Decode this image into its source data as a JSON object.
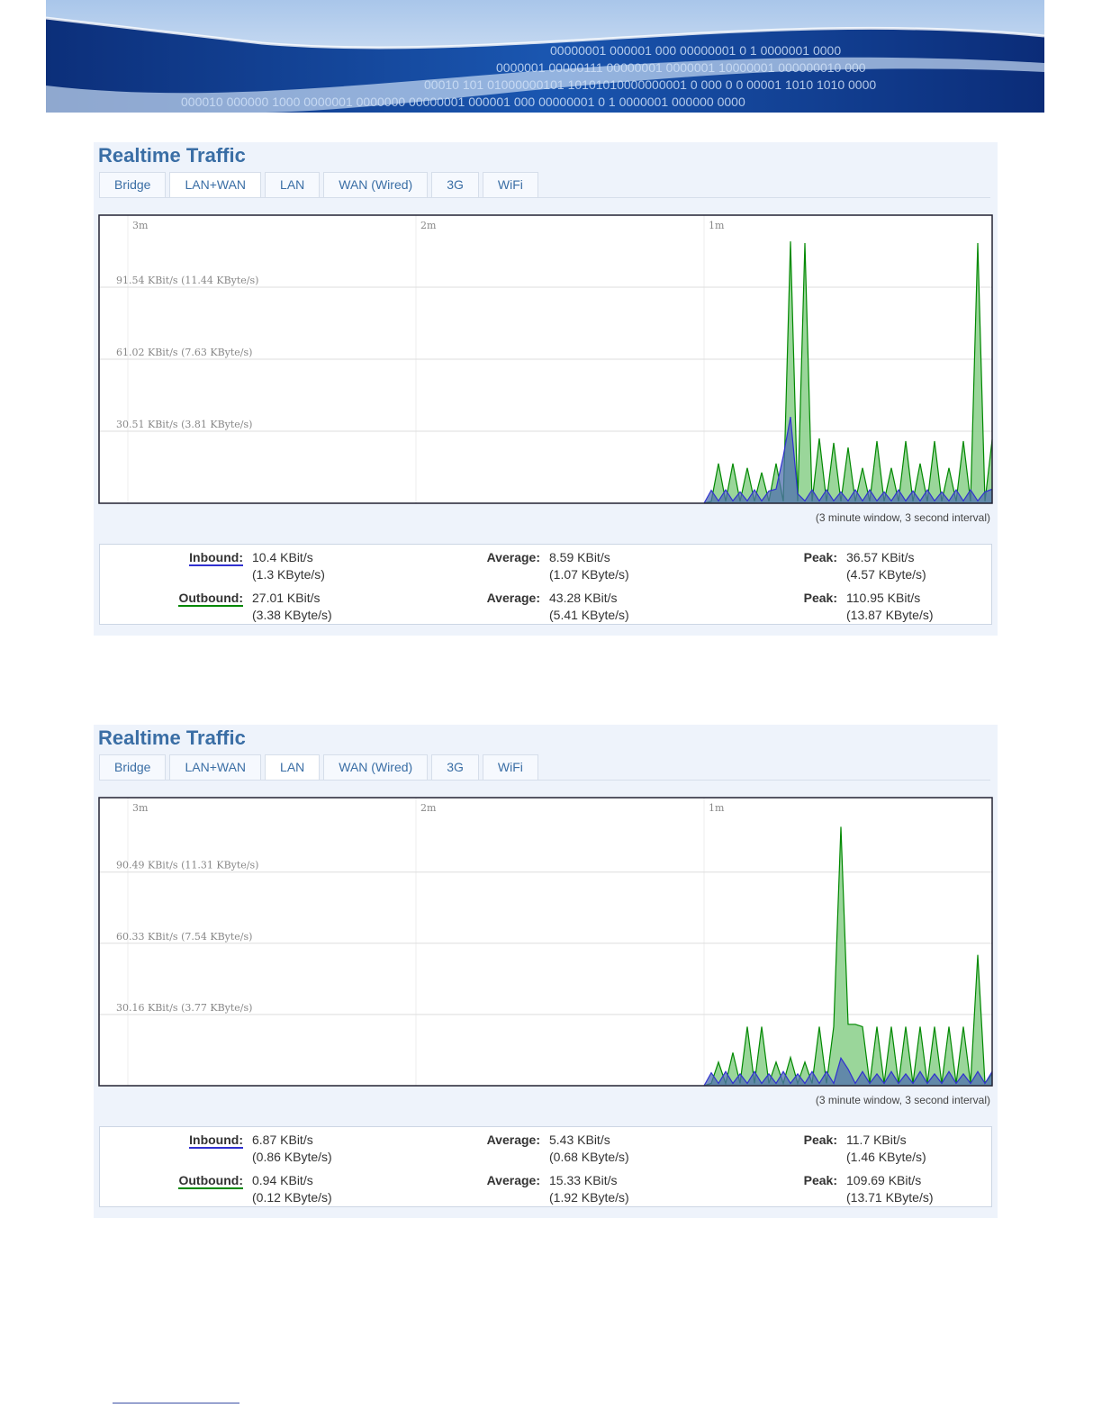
{
  "banner": {
    "lines": [
      "00000001 000001 000 00000001 0 1 0000001 0000",
      "0000001 00000111 00000001 0000001 10000001 000000010 000",
      "00010 101 01000000101 10101010000000001 0 000 0 0 00001 1010 1010 0000",
      "000010 000000 1000 0000001 0000000 00000001 000001 000 00000001 0 1 0000001 000000 0000"
    ]
  },
  "panels": [
    {
      "title": "Realtime Traffic",
      "tabs": [
        "Bridge",
        "LAN+WAN",
        "LAN",
        "WAN (Wired)",
        "3G",
        "WiFi"
      ],
      "active_tab": 1,
      "graph": {
        "xlim": [
          186,
          0
        ],
        "ylim": [
          0,
          122.04
        ],
        "xticks": [
          {
            "value": 180,
            "label": "3m"
          },
          {
            "value": 120,
            "label": "2m"
          },
          {
            "value": 60,
            "label": "1m"
          }
        ],
        "yticks": [
          {
            "value": 30.51,
            "label": "30.51 KBit/s (3.81 KByte/s)"
          },
          {
            "value": 61.02,
            "label": "61.02 KBit/s (7.63 KByte/s)"
          },
          {
            "value": 91.54,
            "label": "91.54 KBit/s (11.44 KByte/s)"
          }
        ],
        "x": [
          60,
          58.5,
          57,
          55.5,
          54,
          52.5,
          51,
          49.5,
          48,
          46.5,
          45,
          43.5,
          42,
          40.5,
          39,
          37.5,
          36,
          34.5,
          33,
          31.5,
          30,
          28.5,
          27,
          25.5,
          24,
          22.5,
          21,
          19.5,
          18,
          16.5,
          15,
          13.5,
          12,
          10.5,
          9,
          7.5,
          6,
          4.5,
          3,
          1.5,
          0
        ],
        "series": [
          {
            "color": "#008800",
            "fill": "#8fd18f",
            "values": [
              0,
              0.8,
              16.8,
              0.8,
              16.8,
              0.8,
              15,
              0.8,
              13,
              0.8,
              16.8,
              0.8,
              110.95,
              0.8,
              110.2,
              0.8,
              27.5,
              0.8,
              25.6,
              0.8,
              23.6,
              0.8,
              15,
              0.8,
              26.3,
              0.8,
              15,
              0.8,
              26.3,
              0.8,
              16.8,
              0.8,
              26.3,
              0.8,
              15,
              0.8,
              26.3,
              0.8,
              110.2,
              0.8,
              27
            ]
          },
          {
            "color": "#3030d0",
            "fill": "#4f6fae",
            "values": [
              0,
              5.5,
              1,
              5.7,
              1,
              4.8,
              1,
              5.7,
              1,
              5.2,
              6,
              20,
              36.57,
              4,
              1,
              5.7,
              1,
              5.7,
              1,
              4.8,
              1,
              5.7,
              1,
              5.7,
              1,
              4.8,
              1,
              5.7,
              1,
              5.2,
              1,
              5.7,
              1,
              4.8,
              1,
              5.7,
              1,
              5.7,
              1,
              4.8,
              6
            ]
          }
        ],
        "note": "(3 minute window, 3 second interval)"
      },
      "stats": [
        {
          "label": "Inbound:",
          "cur": "10.4 KBit/s",
          "cur2": "(1.3 KByte/s)",
          "avg_label": "Average:",
          "avg": "8.59 KBit/s",
          "avg2": "(1.07 KByte/s)",
          "peak_label": "Peak:",
          "peak": "36.57 KBit/s",
          "peak2": "(4.57 KByte/s)"
        },
        {
          "label": "Outbound:",
          "cur": "27.01 KBit/s",
          "cur2": "(3.38 KByte/s)",
          "avg_label": "Average:",
          "avg": "43.28 KBit/s",
          "avg2": "(5.41 KByte/s)",
          "peak_label": "Peak:",
          "peak": "110.95 KBit/s",
          "peak2": "(13.87 KByte/s)"
        }
      ]
    },
    {
      "title": "Realtime Traffic",
      "tabs": [
        "Bridge",
        "LAN+WAN",
        "LAN",
        "WAN (Wired)",
        "3G",
        "WiFi"
      ],
      "active_tab": 2,
      "graph": {
        "xlim": [
          186,
          0
        ],
        "ylim": [
          0,
          122.04
        ],
        "xticks": [
          {
            "value": 180,
            "label": "3m"
          },
          {
            "value": 120,
            "label": "2m"
          },
          {
            "value": 60,
            "label": "1m"
          }
        ],
        "yticks": [
          {
            "value": 30.16,
            "label": "30.16 KBit/s (3.77 KByte/s)"
          },
          {
            "value": 60.33,
            "label": "60.33 KBit/s (7.54 KByte/s)"
          },
          {
            "value": 90.49,
            "label": "90.49 KBit/s (11.31 KByte/s)"
          }
        ],
        "x": [
          60,
          58.5,
          57,
          55.5,
          54,
          52.5,
          51,
          49.5,
          48,
          46.5,
          45,
          43.5,
          42,
          40.5,
          39,
          37.5,
          36,
          34.5,
          33,
          31.5,
          30,
          28.5,
          27,
          25.5,
          24,
          22.5,
          21,
          19.5,
          18,
          16.5,
          15,
          13.5,
          12,
          10.5,
          9,
          7.5,
          6,
          4.5,
          3,
          1.5,
          0
        ],
        "series": [
          {
            "color": "#008800",
            "fill": "#8fd18f",
            "values": [
              0,
              1,
              10,
              1,
              14,
              1,
              25,
              1,
              25,
              1,
              10,
              1,
              12,
              1,
              10,
              1,
              25,
              1,
              25,
              109.69,
              26,
              26,
              25,
              1,
              25,
              1,
              25,
              1,
              25,
              1,
              25,
              1,
              25,
              1,
              25,
              1,
              25,
              1,
              55.4,
              1,
              5
            ]
          },
          {
            "color": "#3030d0",
            "fill": "#4f6fae",
            "values": [
              0,
              5.5,
              1,
              6,
              1,
              5,
              1,
              6,
              1,
              5,
              1,
              6,
              1,
              5,
              1,
              6,
              1,
              6,
              1,
              11.7,
              7,
              1,
              6,
              1,
              5,
              1,
              6,
              1,
              5,
              1,
              6,
              1,
              5,
              1,
              6,
              1,
              5,
              1,
              6,
              1,
              6
            ]
          }
        ],
        "note": "(3 minute window, 3 second interval)"
      },
      "stats": [
        {
          "label": "Inbound:",
          "cur": "6.87 KBit/s",
          "cur2": "(0.86 KByte/s)",
          "avg_label": "Average:",
          "avg": "5.43 KBit/s",
          "avg2": "(0.68 KByte/s)",
          "peak_label": "Peak:",
          "peak": "11.7 KBit/s",
          "peak2": "(1.46 KByte/s)"
        },
        {
          "label": "Outbound:",
          "cur": "0.94 KBit/s",
          "cur2": "(0.12 KByte/s)",
          "avg_label": "Average:",
          "avg": "15.33 KBit/s",
          "avg2": "(1.92 KByte/s)",
          "peak_label": "Peak:",
          "peak": "109.69 KBit/s",
          "peak2": "(13.71 KByte/s)"
        }
      ]
    }
  ]
}
